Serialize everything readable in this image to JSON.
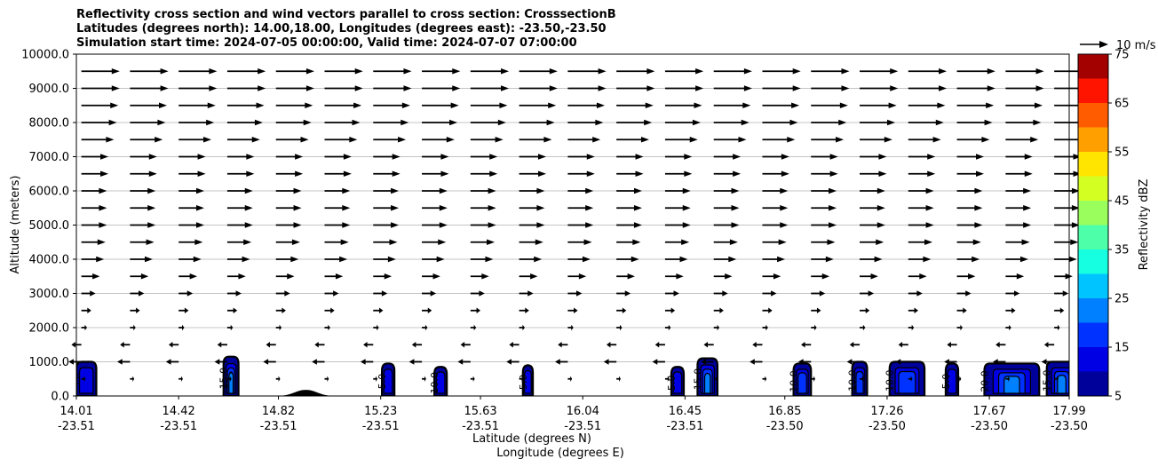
{
  "title_lines": [
    "Reflectivity cross section and wind vectors parallel to cross section: CrosssectionB",
    "Latitudes (degrees north): 14.00,18.00, Longitudes (degrees east): -23.50,-23.50",
    "Simulation start time: 2024-07-05 00:00:00, Valid time: 2024-07-07 07:00:00"
  ],
  "chart_data": {
    "type": "heatmap",
    "subtype": "cross-section reflectivity contours with wind vectors",
    "ylabel": "Altitude (meters)",
    "xlabel_lines": [
      "Latitude (degrees N)",
      "Longitude (degrees E)"
    ],
    "ylim": [
      0,
      10000
    ],
    "xlim": [
      14.01,
      17.99
    ],
    "y_ticks": [
      "0.0",
      "1000.0",
      "2000.0",
      "3000.0",
      "4000.0",
      "5000.0",
      "6000.0",
      "7000.0",
      "8000.0",
      "9000.0",
      "10000.0"
    ],
    "x_ticks": [
      {
        "lat": "14.01",
        "lon": "-23.51",
        "value": 14.01
      },
      {
        "lat": "14.42",
        "lon": "-23.51",
        "value": 14.42
      },
      {
        "lat": "14.82",
        "lon": "-23.51",
        "value": 14.82
      },
      {
        "lat": "15.23",
        "lon": "-23.51",
        "value": 15.23
      },
      {
        "lat": "15.63",
        "lon": "-23.51",
        "value": 15.63
      },
      {
        "lat": "16.04",
        "lon": "-23.51",
        "value": 16.04
      },
      {
        "lat": "16.45",
        "lon": "-23.51",
        "value": 16.45
      },
      {
        "lat": "16.85",
        "lon": "-23.50",
        "value": 16.85
      },
      {
        "lat": "17.26",
        "lon": "-23.50",
        "value": 17.26
      },
      {
        "lat": "17.67",
        "lon": "-23.50",
        "value": 17.67
      },
      {
        "lat": "17.99",
        "lon": "-23.50",
        "value": 17.99
      }
    ],
    "grid": "horizontal",
    "colorbar": {
      "label": "Reflectivity dBZ",
      "levels": [
        5,
        10,
        15,
        20,
        25,
        30,
        35,
        40,
        45,
        50,
        55,
        60,
        65,
        70,
        75
      ],
      "tick_labels": [
        "5",
        "15",
        "25",
        "35",
        "45",
        "55",
        "65",
        "75"
      ],
      "colors": [
        "#00009a",
        "#0000e4",
        "#0032ff",
        "#0080ff",
        "#00c4ff",
        "#16ffe1",
        "#4dffa9",
        "#9aff5c",
        "#d4ff23",
        "#ffe500",
        "#ffa000",
        "#ff5c00",
        "#ff1400",
        "#a30000"
      ]
    },
    "quiver_key": "10 m/s",
    "wind_field": {
      "x_spacing_deg": 0.195,
      "levels_m": [
        {
          "alt": 9500,
          "u": 13.5
        },
        {
          "alt": 9000,
          "u": 13.5
        },
        {
          "alt": 8500,
          "u": 13.0
        },
        {
          "alt": 8000,
          "u": 12.5
        },
        {
          "alt": 7500,
          "u": 11.5
        },
        {
          "alt": 7000,
          "u": 9.5
        },
        {
          "alt": 6500,
          "u": 9.5
        },
        {
          "alt": 6000,
          "u": 9.0
        },
        {
          "alt": 5500,
          "u": 9.0
        },
        {
          "alt": 5000,
          "u": 9.0
        },
        {
          "alt": 4500,
          "u": 8.5
        },
        {
          "alt": 4000,
          "u": 8.0
        },
        {
          "alt": 3500,
          "u": 6.5
        },
        {
          "alt": 3000,
          "u": 5.0
        },
        {
          "alt": 2500,
          "u": 3.5
        },
        {
          "alt": 2000,
          "u": 2.0
        },
        {
          "alt": 1500,
          "u": -3.5
        },
        {
          "alt": 1000,
          "u": -4.5
        },
        {
          "alt": 500,
          "u": 1.5
        }
      ]
    },
    "reflectivity_cells": [
      {
        "lat": 14.05,
        "width_deg": 0.08,
        "top_m": 1000,
        "max_dbz": 12,
        "label": "5.0"
      },
      {
        "lat": 14.63,
        "width_deg": 0.06,
        "top_m": 1150,
        "max_dbz": 22,
        "label": "15.0"
      },
      {
        "lat": 15.26,
        "width_deg": 0.05,
        "top_m": 950,
        "max_dbz": 12,
        "label": "5.0"
      },
      {
        "lat": 15.47,
        "width_deg": 0.05,
        "top_m": 850,
        "max_dbz": 14,
        "label": "10.0"
      },
      {
        "lat": 15.82,
        "width_deg": 0.04,
        "top_m": 900,
        "max_dbz": 10,
        "label": "5.0"
      },
      {
        "lat": 16.42,
        "width_deg": 0.05,
        "top_m": 850,
        "max_dbz": 12,
        "label": "5.0"
      },
      {
        "lat": 16.54,
        "width_deg": 0.08,
        "top_m": 1100,
        "max_dbz": 22,
        "label": "15.0"
      },
      {
        "lat": 16.92,
        "width_deg": 0.07,
        "top_m": 950,
        "max_dbz": 15,
        "label": "10.0"
      },
      {
        "lat": 17.15,
        "width_deg": 0.06,
        "top_m": 1000,
        "max_dbz": 15,
        "label": "10.0"
      },
      {
        "lat": 17.34,
        "width_deg": 0.14,
        "top_m": 1000,
        "max_dbz": 18,
        "label": "10.0"
      },
      {
        "lat": 17.52,
        "width_deg": 0.05,
        "top_m": 950,
        "max_dbz": 12,
        "label": "5.0"
      },
      {
        "lat": 17.76,
        "width_deg": 0.22,
        "top_m": 950,
        "max_dbz": 28,
        "label": "20.0"
      },
      {
        "lat": 17.96,
        "width_deg": 0.12,
        "top_m": 1000,
        "max_dbz": 20,
        "label": "15.0"
      }
    ],
    "terrain": {
      "lat_center": 14.93,
      "half_width_deg": 0.12,
      "peak_m": 180
    }
  }
}
